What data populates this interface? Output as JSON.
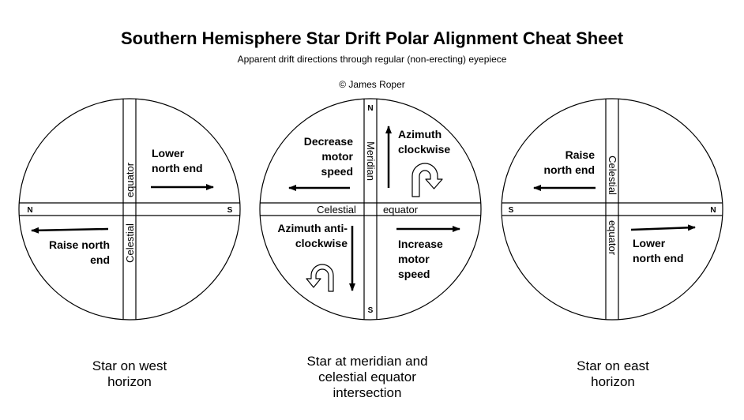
{
  "header": {
    "title": "Southern Hemisphere Star Drift Polar Alignment Cheat Sheet",
    "subtitle": "Apparent drift directions through regular (non-erecting) eyepiece",
    "copyright": "© James Roper"
  },
  "west": {
    "band_upper": "equator",
    "band_lower": "Celestial",
    "north": "N",
    "south": "S",
    "drift_east_line1": "Lower",
    "drift_east_line2": "north end",
    "drift_west_line1": "Raise north",
    "drift_west_line2": "end",
    "caption_line1": "Star on west",
    "caption_line2": "horizon"
  },
  "center": {
    "band_left": "Celestial",
    "band_right": "equator",
    "meridian": "Meridian",
    "north": "N",
    "south": "S",
    "west_line1": "Decrease",
    "west_line2": "motor",
    "west_line3": "speed",
    "east_line1": "Increase",
    "east_line2": "motor",
    "east_line3": "speed",
    "north_line1": "Azimuth",
    "north_line2": "clockwise",
    "south_line1": "Azimuth anti-",
    "south_line2": "clockwise",
    "caption_line1": "Star at meridian and",
    "caption_line2": "celestial equator",
    "caption_line3": "intersection"
  },
  "east": {
    "band_upper": "Celestial",
    "band_lower": "equator",
    "north": "N",
    "south": "S",
    "drift_west_line1": "Raise",
    "drift_west_line2": "north end",
    "drift_east_line1": "Lower",
    "drift_east_line2": "north end",
    "caption_line1": "Star on east",
    "caption_line2": "horizon"
  },
  "icons": [
    "clockwise-u-turn-icon",
    "anticlockwise-u-turn-icon"
  ]
}
